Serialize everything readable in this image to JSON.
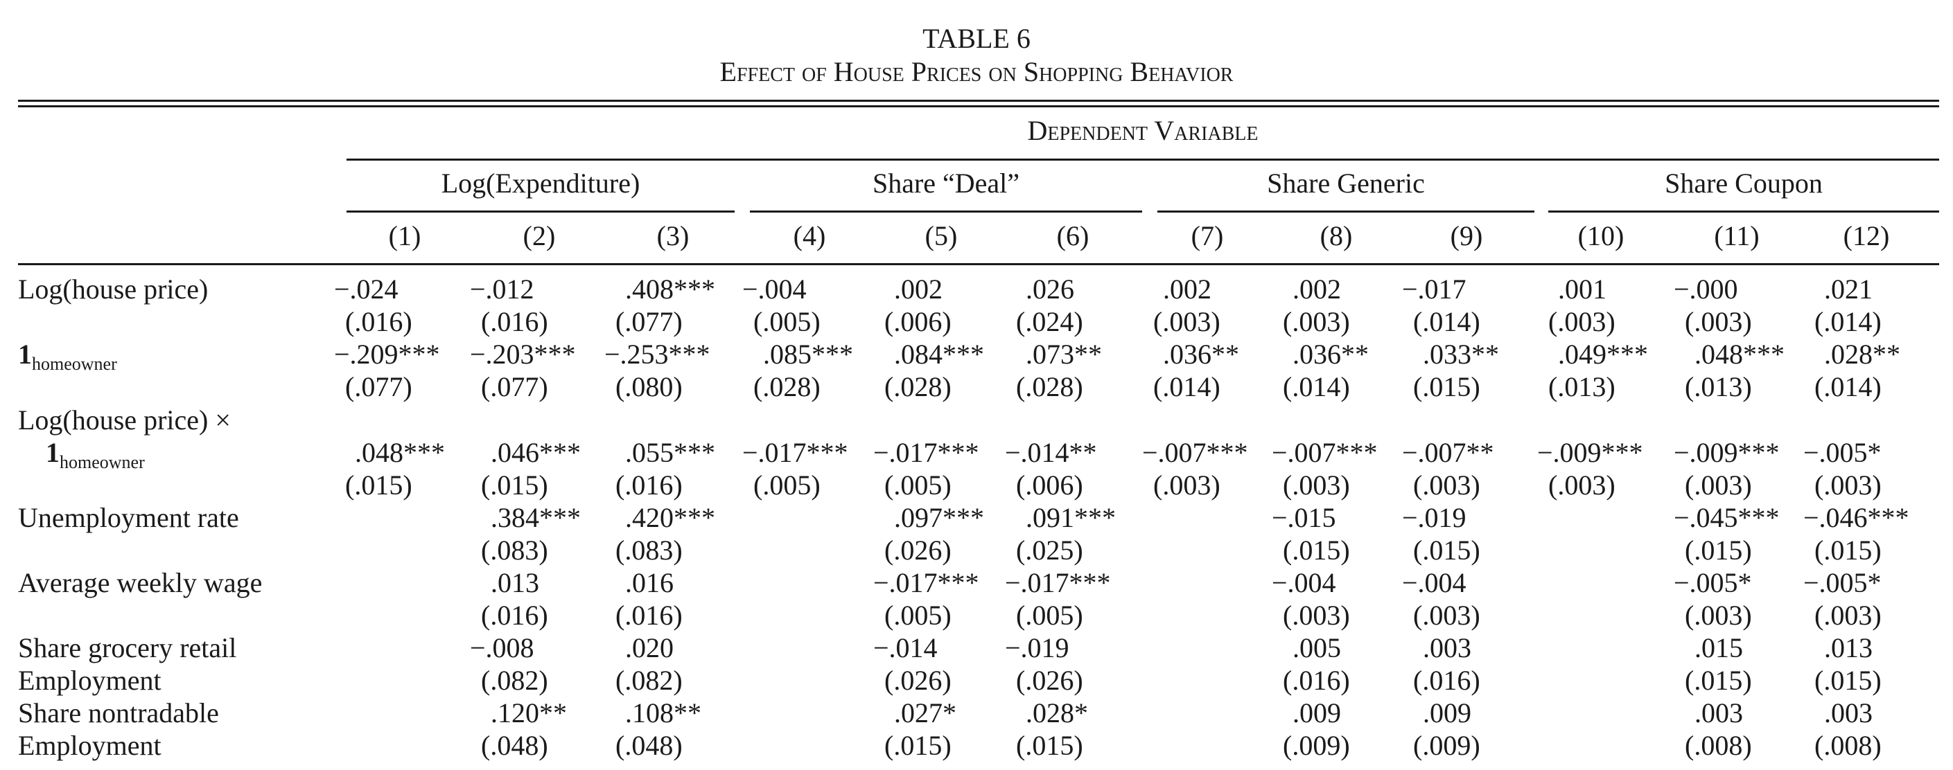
{
  "table": {
    "number": "TABLE 6",
    "title": "Effect of House Prices on Shopping Behavior",
    "dependent_variable_label": "Dependent Variable",
    "groups": [
      "Log(Expenditure)",
      "Share “Deal”",
      "Share Generic",
      "Share Coupon"
    ],
    "column_numbers": [
      "(1)",
      "(2)",
      "(3)",
      "(4)",
      "(5)",
      "(6)",
      "(7)",
      "(8)",
      "(9)",
      "(10)",
      "(11)",
      "(12)"
    ],
    "rows": [
      {
        "label": [
          "Log(house price)"
        ],
        "coef": [
          "−.024",
          "−.012",
          ".408***",
          "−.004",
          ".002",
          ".026",
          ".002",
          ".002",
          "−.017",
          ".001",
          "−.000",
          ".021"
        ],
        "se": [
          "(.016)",
          "(.016)",
          "(.077)",
          "(.005)",
          "(.006)",
          "(.024)",
          "(.003)",
          "(.003)",
          "(.014)",
          "(.003)",
          "(.003)",
          "(.014)"
        ]
      },
      {
        "label_indicator": "1",
        "label_subscript": "homeowner",
        "coef": [
          "−.209***",
          "−.203***",
          "−.253***",
          ".085***",
          ".084***",
          ".073**",
          ".036**",
          ".036**",
          ".033**",
          ".049***",
          ".048***",
          ".028**"
        ],
        "se": [
          "(.077)",
          "(.077)",
          "(.080)",
          "(.028)",
          "(.028)",
          "(.028)",
          "(.014)",
          "(.014)",
          "(.015)",
          "(.013)",
          "(.013)",
          "(.014)"
        ]
      },
      {
        "label_line1": "Log(house price) ×",
        "label_indicator": "1",
        "label_subscript": "homeowner",
        "coef": [
          ".048***",
          ".046***",
          ".055***",
          "−.017***",
          "−.017***",
          "−.014**",
          "−.007***",
          "−.007***",
          "−.007**",
          "−.009***",
          "−.009***",
          "−.005*"
        ],
        "se": [
          "(.015)",
          "(.015)",
          "(.016)",
          "(.005)",
          "(.005)",
          "(.006)",
          "(.003)",
          "(.003)",
          "(.003)",
          "(.003)",
          "(.003)",
          "(.003)"
        ]
      },
      {
        "label": [
          "Unemployment rate"
        ],
        "coef": [
          "",
          ".384***",
          ".420***",
          "",
          ".097***",
          ".091***",
          "",
          "−.015",
          "−.019",
          "",
          "−.045***",
          "−.046***"
        ],
        "se": [
          "",
          "(.083)",
          "(.083)",
          "",
          "(.026)",
          "(.025)",
          "",
          "(.015)",
          "(.015)",
          "",
          "(.015)",
          "(.015)"
        ]
      },
      {
        "label": [
          "Average weekly wage"
        ],
        "coef": [
          "",
          ".013",
          ".016",
          "",
          "−.017***",
          "−.017***",
          "",
          "−.004",
          "−.004",
          "",
          "−.005*",
          "−.005*"
        ],
        "se": [
          "",
          "(.016)",
          "(.016)",
          "",
          "(.005)",
          "(.005)",
          "",
          "(.003)",
          "(.003)",
          "",
          "(.003)",
          "(.003)"
        ]
      },
      {
        "label": [
          "Share grocery retail",
          "Employment"
        ],
        "coef": [
          "",
          "−.008",
          ".020",
          "",
          "−.014",
          "−.019",
          "",
          ".005",
          ".003",
          "",
          ".015",
          ".013"
        ],
        "se": [
          "",
          "(.082)",
          "(.082)",
          "",
          "(.026)",
          "(.026)",
          "",
          "(.016)",
          "(.016)",
          "",
          "(.015)",
          "(.015)"
        ]
      },
      {
        "label": [
          "Share nontradable",
          "Employment"
        ],
        "coef": [
          "",
          ".120**",
          ".108**",
          "",
          ".027*",
          ".028*",
          "",
          ".009",
          ".009",
          "",
          ".003",
          ".003"
        ],
        "se": [
          "",
          "(.048)",
          "(.048)",
          "",
          "(.015)",
          "(.015)",
          "",
          "(.009)",
          "(.009)",
          "",
          "(.008)",
          "(.008)"
        ]
      }
    ]
  }
}
